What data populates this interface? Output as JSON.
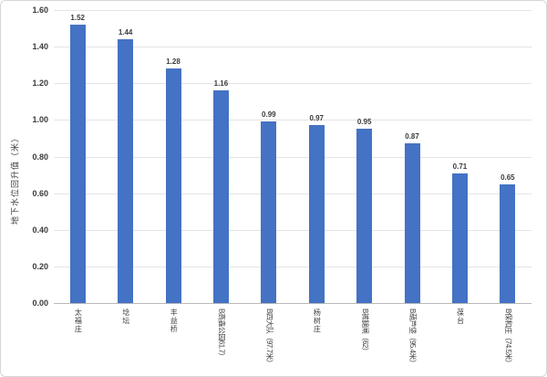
{
  "chart_data": {
    "type": "bar",
    "title": "",
    "xlabel": "",
    "ylabel": "地下水位回升值（米）",
    "categories": [
      "太福庄",
      "埝坛",
      "丰益桥",
      "B高鑫公园61.7）",
      "B四大队（97.7米）",
      "杨树庄",
      "B裤腿闸（62）",
      "B葫芦垡（95.4米）",
      "葆台",
      "B保和庄（74.5米）"
    ],
    "values": [
      1.52,
      1.44,
      1.28,
      1.16,
      0.99,
      0.97,
      0.95,
      0.87,
      0.71,
      0.65
    ],
    "value_labels": [
      "1.52",
      "1.44",
      "1.28",
      "1.16",
      "0.99",
      "0.97",
      "0.95",
      "0.87",
      "0.71",
      "0.65"
    ],
    "ylim": [
      0.0,
      1.6
    ],
    "ytick_step": 0.2,
    "ytick_labels": [
      "0.00",
      "0.20",
      "0.40",
      "0.60",
      "0.80",
      "1.00",
      "1.20",
      "1.40",
      "1.60"
    ],
    "grid": true,
    "legend": "none",
    "bar_color": "#4472c4",
    "gridline_color": "#e4e4e4",
    "axis_line_color": "#b9b9b9",
    "label_color": "#3b3b3b"
  }
}
